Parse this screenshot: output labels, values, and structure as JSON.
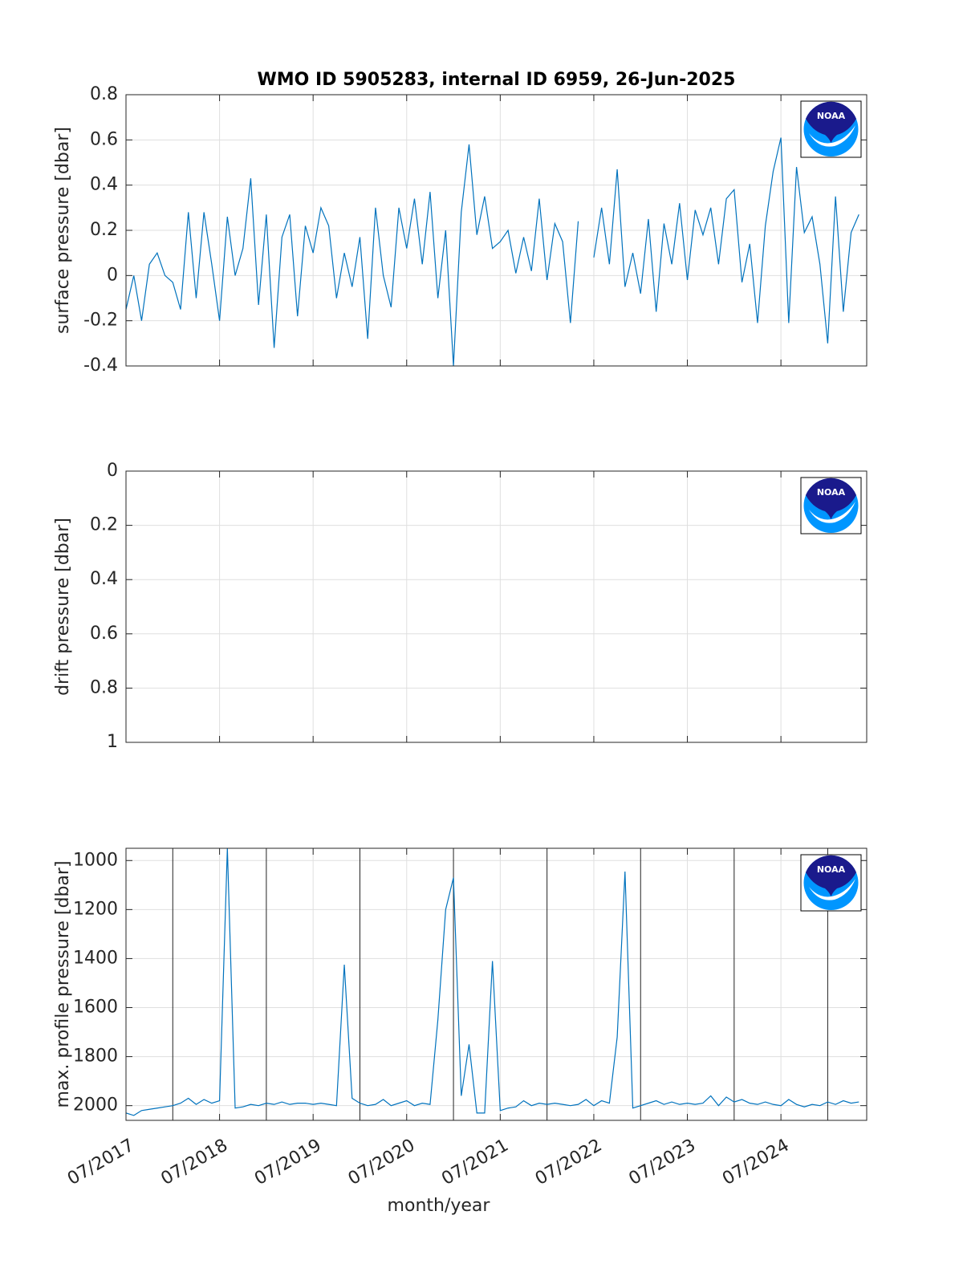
{
  "logo_text": "NOAA",
  "chart_data": [
    {
      "type": "line",
      "title": "WMO ID 5905283, internal ID 6959, 26-Jun-2025",
      "ylabel": "surface pressure [dbar]",
      "xlim": [
        "2017-07",
        "2025-06"
      ],
      "xticks": [
        "2017-07",
        "2018-07",
        "2019-07",
        "2020-07",
        "2021-07",
        "2022-07",
        "2023-07",
        "2024-07"
      ],
      "ylim": [
        -0.4,
        0.8
      ],
      "yticks": [
        -0.4,
        -0.2,
        0,
        0.2,
        0.4,
        0.6,
        0.8
      ],
      "yreverse": false,
      "grid": true,
      "x": [
        "2017-07",
        "2017-08",
        "2017-09",
        "2017-10",
        "2017-11",
        "2017-12",
        "2018-01",
        "2018-02",
        "2018-03",
        "2018-04",
        "2018-05",
        "2018-06",
        "2018-07",
        "2018-08",
        "2018-09",
        "2018-10",
        "2018-11",
        "2018-12",
        "2019-01",
        "2019-02",
        "2019-03",
        "2019-04",
        "2019-05",
        "2019-06",
        "2019-07",
        "2019-08",
        "2019-09",
        "2019-10",
        "2019-11",
        "2019-12",
        "2020-01",
        "2020-02",
        "2020-03",
        "2020-04",
        "2020-05",
        "2020-06",
        "2020-07",
        "2020-08",
        "2020-09",
        "2020-10",
        "2020-11",
        "2020-12",
        "2021-01",
        "2021-02",
        "2021-03",
        "2021-04",
        "2021-05",
        "2021-06",
        "2021-07",
        "2021-08",
        "2021-09",
        "2021-10",
        "2021-11",
        "2021-12",
        "2022-01",
        "2022-02",
        "2022-03",
        "2022-04",
        "2022-05",
        "2022-06",
        "2022-07",
        "2022-08",
        "2022-09",
        "2022-10",
        "2022-11",
        "2022-12",
        "2023-01",
        "2023-02",
        "2023-03",
        "2023-04",
        "2023-05",
        "2023-06",
        "2023-07",
        "2023-08",
        "2023-09",
        "2023-10",
        "2023-11",
        "2023-12",
        "2024-01",
        "2024-02",
        "2024-03",
        "2024-04",
        "2024-05",
        "2024-06",
        "2024-07",
        "2024-08",
        "2024-09",
        "2024-10",
        "2024-11",
        "2024-12",
        "2025-01",
        "2025-02",
        "2025-03",
        "2025-04",
        "2025-05"
      ],
      "series": [
        {
          "name": "surface pressure",
          "color": "#0072bd",
          "values": [
            -0.15,
            0.0,
            -0.2,
            0.05,
            0.1,
            0.0,
            -0.03,
            -0.15,
            0.28,
            -0.1,
            0.28,
            0.05,
            -0.2,
            0.26,
            0.0,
            0.12,
            0.43,
            -0.13,
            0.27,
            -0.32,
            0.17,
            0.27,
            -0.18,
            0.22,
            0.1,
            0.3,
            0.22,
            -0.1,
            0.1,
            -0.05,
            0.17,
            -0.28,
            0.3,
            0.0,
            -0.14,
            0.3,
            0.12,
            0.34,
            0.05,
            0.37,
            -0.1,
            0.2,
            -0.4,
            0.28,
            0.58,
            0.18,
            0.35,
            0.12,
            0.15,
            0.2,
            0.01,
            0.17,
            0.02,
            0.34,
            -0.02,
            0.23,
            0.15,
            -0.21,
            0.24,
            null,
            0.08,
            0.3,
            0.05,
            0.47,
            -0.05,
            0.1,
            -0.08,
            0.25,
            -0.16,
            0.23,
            0.05,
            0.32,
            -0.02,
            0.29,
            0.18,
            0.3,
            0.05,
            0.34,
            0.38,
            -0.03,
            0.14,
            -0.21,
            0.22,
            0.46,
            0.61,
            -0.21,
            0.48,
            0.19,
            0.26,
            0.05,
            -0.3,
            0.35,
            -0.16,
            0.19,
            0.27
          ]
        }
      ]
    },
    {
      "type": "line",
      "ylabel": "drift pressure [dbar]",
      "xlim": [
        "2017-07",
        "2025-06"
      ],
      "xticks": [
        "2017-07",
        "2018-07",
        "2019-07",
        "2020-07",
        "2021-07",
        "2022-07",
        "2023-07",
        "2024-07"
      ],
      "ylim": [
        0,
        1
      ],
      "yticks": [
        0,
        0.2,
        0.4,
        0.6,
        0.8,
        1
      ],
      "yreverse": true,
      "grid": true,
      "x": [],
      "series": []
    },
    {
      "type": "line",
      "ylabel": "max. profile pressure [dbar]",
      "xlabel": "month/year",
      "xlim": [
        "2017-07",
        "2025-06"
      ],
      "xticks": [
        {
          "value": "2017-07",
          "label": "07/2017"
        },
        {
          "value": "2018-07",
          "label": "07/2018"
        },
        {
          "value": "2019-07",
          "label": "07/2019"
        },
        {
          "value": "2020-07",
          "label": "07/2020"
        },
        {
          "value": "2021-07",
          "label": "07/2021"
        },
        {
          "value": "2022-07",
          "label": "07/2022"
        },
        {
          "value": "2023-07",
          "label": "07/2023"
        },
        {
          "value": "2024-07",
          "label": "07/2024"
        }
      ],
      "vlines": [
        "2018-01",
        "2019-01",
        "2020-01",
        "2021-01",
        "2022-01",
        "2023-01",
        "2024-01",
        "2025-01"
      ],
      "ylim": [
        950,
        2060
      ],
      "yticks": [
        1000,
        1200,
        1400,
        1600,
        1800,
        2000
      ],
      "yreverse": true,
      "grid": true,
      "x": [
        "2017-07",
        "2017-08",
        "2017-09",
        "2017-10",
        "2017-11",
        "2017-12",
        "2018-01",
        "2018-02",
        "2018-03",
        "2018-04",
        "2018-05",
        "2018-06",
        "2018-07",
        "2018-08",
        "2018-09",
        "2018-10",
        "2018-11",
        "2018-12",
        "2019-01",
        "2019-02",
        "2019-03",
        "2019-04",
        "2019-05",
        "2019-06",
        "2019-07",
        "2019-08",
        "2019-09",
        "2019-10",
        "2019-11",
        "2019-12",
        "2020-01",
        "2020-02",
        "2020-03",
        "2020-04",
        "2020-05",
        "2020-06",
        "2020-07",
        "2020-08",
        "2020-09",
        "2020-10",
        "2020-11",
        "2020-12",
        "2021-01",
        "2021-02",
        "2021-03",
        "2021-04",
        "2021-05",
        "2021-06",
        "2021-07",
        "2021-08",
        "2021-09",
        "2021-10",
        "2021-11",
        "2021-12",
        "2022-01",
        "2022-02",
        "2022-03",
        "2022-04",
        "2022-05",
        "2022-06",
        "2022-07",
        "2022-08",
        "2022-09",
        "2022-10",
        "2022-11",
        "2022-12",
        "2023-01",
        "2023-02",
        "2023-03",
        "2023-04",
        "2023-05",
        "2023-06",
        "2023-07",
        "2023-08",
        "2023-09",
        "2023-10",
        "2023-11",
        "2023-12",
        "2024-01",
        "2024-02",
        "2024-03",
        "2024-04",
        "2024-05",
        "2024-06",
        "2024-07",
        "2024-08",
        "2024-09",
        "2024-10",
        "2024-11",
        "2024-12",
        "2025-01",
        "2025-02",
        "2025-03",
        "2025-04",
        "2025-05"
      ],
      "series": [
        {
          "name": "max. profile pressure",
          "color": "#0072bd",
          "values": [
            2030,
            2040,
            2020,
            2015,
            2010,
            2005,
            2000,
            1990,
            1970,
            1995,
            1975,
            1990,
            1980,
            950,
            2010,
            2005,
            1995,
            2000,
            1990,
            1995,
            1985,
            1995,
            1990,
            1990,
            1995,
            1990,
            1995,
            2000,
            1425,
            1970,
            1990,
            2000,
            1995,
            1975,
            2000,
            1990,
            1980,
            2000,
            1990,
            1995,
            1650,
            1200,
            1070,
            1960,
            1750,
            2030,
            2030,
            1410,
            2020,
            2010,
            2005,
            1980,
            2000,
            1990,
            1995,
            1990,
            1995,
            2000,
            1995,
            1975,
            2000,
            1980,
            1990,
            1720,
            1045,
            2010,
            2000,
            1990,
            1980,
            1995,
            1985,
            1995,
            1990,
            1995,
            1990,
            1960,
            2000,
            1965,
            1985,
            1975,
            1990,
            1995,
            1985,
            1995,
            2000,
            1975,
            1995,
            2005,
            1995,
            2000,
            1985,
            1995,
            1980,
            1990,
            1985
          ]
        }
      ]
    }
  ]
}
